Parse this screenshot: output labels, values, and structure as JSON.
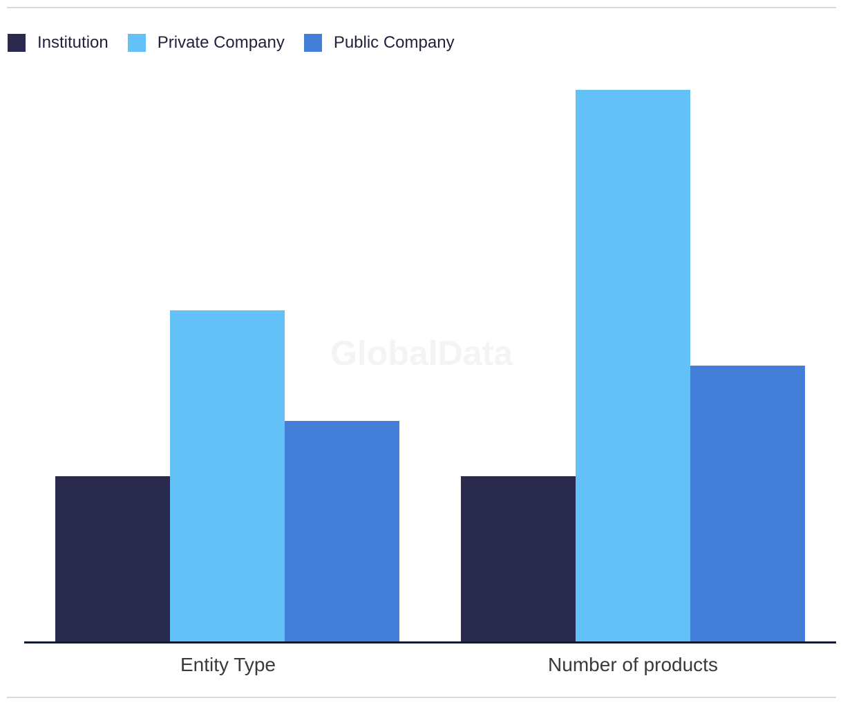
{
  "watermark": {
    "text": "GlobalData"
  },
  "colors": {
    "divider": "#d9d9d9",
    "axis": "#11182b",
    "category-label": "#3a3a3a",
    "legend-label": "#20223f",
    "watermark": "#f4f4f6"
  },
  "chart_data": {
    "type": "bar",
    "title": "",
    "xlabel": "",
    "ylabel": "",
    "categories": [
      "Entity Type",
      "Number of products"
    ],
    "series": [
      {
        "name": "Institution",
        "color": "#292a4d",
        "values": [
          3,
          3
        ]
      },
      {
        "name": "Private Company",
        "color": "#63c1f8",
        "values": [
          6,
          10
        ]
      },
      {
        "name": "Public Company",
        "color": "#437ed8",
        "values": [
          4,
          5
        ]
      }
    ],
    "ylim": [
      0,
      10
    ],
    "y_axis_visible": false,
    "grid": false,
    "legend_position": "top-left",
    "watermark_text": "GlobalData"
  }
}
